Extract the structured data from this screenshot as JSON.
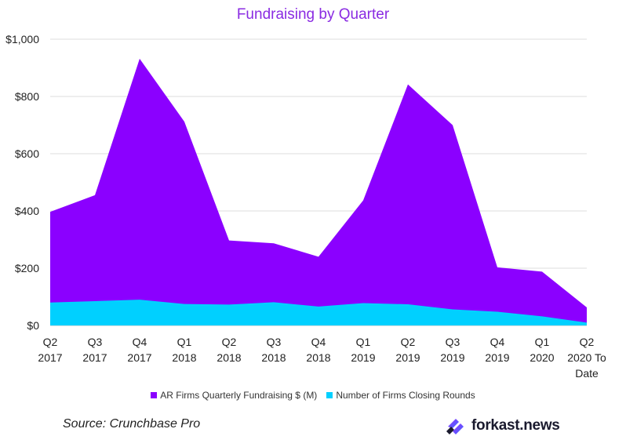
{
  "chart_data": {
    "type": "area",
    "title": "Fundraising by Quarter",
    "categories": [
      [
        "Q2",
        "2017"
      ],
      [
        "Q3",
        "2017"
      ],
      [
        "Q4",
        "2017"
      ],
      [
        "Q1",
        "2018"
      ],
      [
        "Q2",
        "2018"
      ],
      [
        "Q3",
        "2018"
      ],
      [
        "Q4",
        "2018"
      ],
      [
        "Q1",
        "2019"
      ],
      [
        "Q2",
        "2019"
      ],
      [
        "Q3",
        "2019"
      ],
      [
        "Q4",
        "2019"
      ],
      [
        "Q1",
        "2020"
      ],
      [
        "Q2",
        "2020 To",
        "Date"
      ]
    ],
    "series": [
      {
        "name": "AR Firms Quarterly Fundraising $ (M)",
        "color": "#8b00ff",
        "values": [
          397,
          455,
          932,
          712,
          297,
          287,
          240,
          437,
          842,
          700,
          203,
          188,
          63
        ]
      },
      {
        "name": "Number of Firms Closing Rounds",
        "color": "#00d0ff",
        "values": [
          80,
          85,
          90,
          75,
          73,
          81,
          66,
          78,
          74,
          56,
          48,
          32,
          10
        ]
      }
    ],
    "ylim": [
      0,
      1000
    ],
    "yticks": [
      0,
      200,
      400,
      600,
      800,
      1000
    ],
    "ytick_labels": [
      "$0",
      "$200",
      "$400",
      "$600",
      "$800",
      "$1,000"
    ],
    "grid": true,
    "legend_position": "bottom"
  },
  "footer": {
    "source": "Source: Crunchbase Pro",
    "brand_prefix": "forkast",
    "brand_suffix": ".news"
  }
}
